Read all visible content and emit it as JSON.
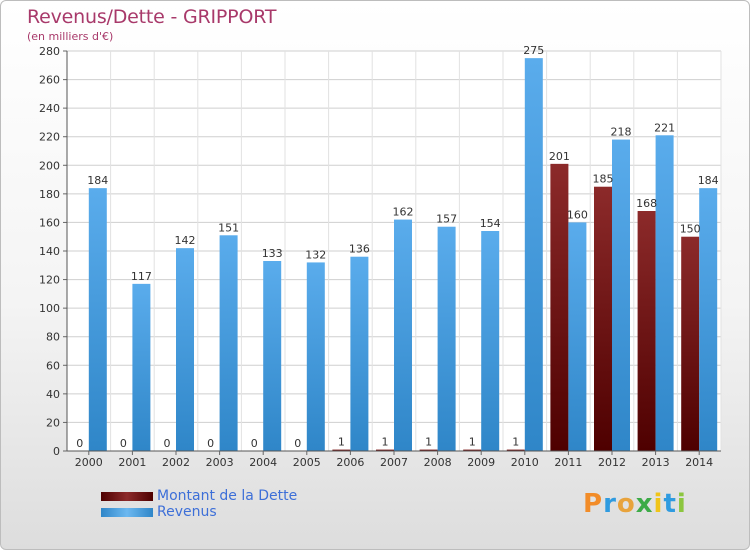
{
  "header": {
    "title": "Revenus/Dette - GRIPPORT",
    "subtitle": "(en milliers d'€)"
  },
  "brand": {
    "name": "Proxiti",
    "letter_colors": [
      "#f28c28",
      "#2f9be0",
      "#e8a33c",
      "#3dab48",
      "#f0c419",
      "#2f9be0",
      "#8cc63f"
    ]
  },
  "legend": {
    "items": [
      {
        "label": "Montant de la Dette",
        "color": "#6e0a0a"
      },
      {
        "label": "Revenus",
        "color": "#4aa3e8"
      }
    ]
  },
  "chart_data": {
    "type": "bar",
    "title": "Revenus/Dette - GRIPPORT",
    "subtitle": "(en milliers d'€)",
    "xlabel": "",
    "ylabel": "",
    "categories": [
      "2000",
      "2001",
      "2002",
      "2003",
      "2004",
      "2005",
      "2006",
      "2007",
      "2008",
      "2009",
      "2010",
      "2011",
      "2012",
      "2013",
      "2014"
    ],
    "series": [
      {
        "name": "Montant de la Dette",
        "color": "#6e0a0a",
        "values": [
          0,
          0,
          0,
          0,
          0,
          0,
          1,
          1,
          1,
          1,
          1,
          201,
          185,
          168,
          150
        ]
      },
      {
        "name": "Revenus",
        "color": "#4aa3e8",
        "values": [
          184,
          117,
          142,
          151,
          133,
          132,
          136,
          162,
          157,
          154,
          275,
          160,
          218,
          221,
          184
        ]
      }
    ],
    "ylim": [
      0,
      280
    ],
    "yticks": [
      0,
      20,
      40,
      60,
      80,
      100,
      120,
      140,
      160,
      180,
      200,
      220,
      240,
      260,
      280
    ],
    "grid": true,
    "legend_position": "bottom-left"
  }
}
